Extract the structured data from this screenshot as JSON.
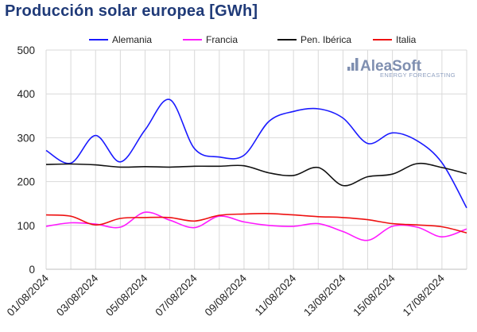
{
  "title": "Producción solar europea [GWh]",
  "logo": {
    "name": "AleaSoft",
    "tagline": "ENERGY FORECASTING",
    "color": "#7f8fb0"
  },
  "chart_data": {
    "type": "line",
    "title": "Producción solar europea [GWh]",
    "xlabel": "",
    "ylabel": "",
    "ylim": [
      0,
      500
    ],
    "yticks": [
      0,
      100,
      200,
      300,
      400,
      500
    ],
    "xtick_labels": [
      "01/08/2024",
      "03/08/2024",
      "05/08/2024",
      "07/08/2024",
      "09/08/2024",
      "11/08/2024",
      "13/08/2024",
      "15/08/2024",
      "17/08/2024"
    ],
    "x": [
      "01/08/2024",
      "02/08/2024",
      "03/08/2024",
      "04/08/2024",
      "05/08/2024",
      "06/08/2024",
      "07/08/2024",
      "08/08/2024",
      "09/08/2024",
      "10/08/2024",
      "11/08/2024",
      "12/08/2024",
      "13/08/2024",
      "14/08/2024",
      "15/08/2024",
      "16/08/2024",
      "17/08/2024",
      "18/08/2024"
    ],
    "grid": true,
    "legend_position": "top",
    "series": [
      {
        "name": "Alemania",
        "color": "#1a1aff",
        "values": [
          271,
          242,
          305,
          245,
          318,
          387,
          275,
          256,
          260,
          337,
          360,
          366,
          345,
          287,
          311,
          293,
          243,
          140
        ]
      },
      {
        "name": "Francia",
        "color": "#ff1aff",
        "values": [
          98,
          106,
          103,
          96,
          130,
          112,
          95,
          121,
          108,
          100,
          98,
          104,
          86,
          66,
          98,
          96,
          74,
          92
        ]
      },
      {
        "name": "Pen. Ibérica",
        "color": "#111111",
        "values": [
          239,
          240,
          238,
          233,
          234,
          233,
          235,
          235,
          236,
          220,
          214,
          232,
          191,
          211,
          217,
          241,
          232,
          218
        ]
      },
      {
        "name": "Italia",
        "color": "#ee1111",
        "values": [
          124,
          121,
          101,
          116,
          118,
          118,
          110,
          123,
          126,
          127,
          124,
          120,
          118,
          113,
          104,
          101,
          97,
          83
        ]
      }
    ]
  }
}
